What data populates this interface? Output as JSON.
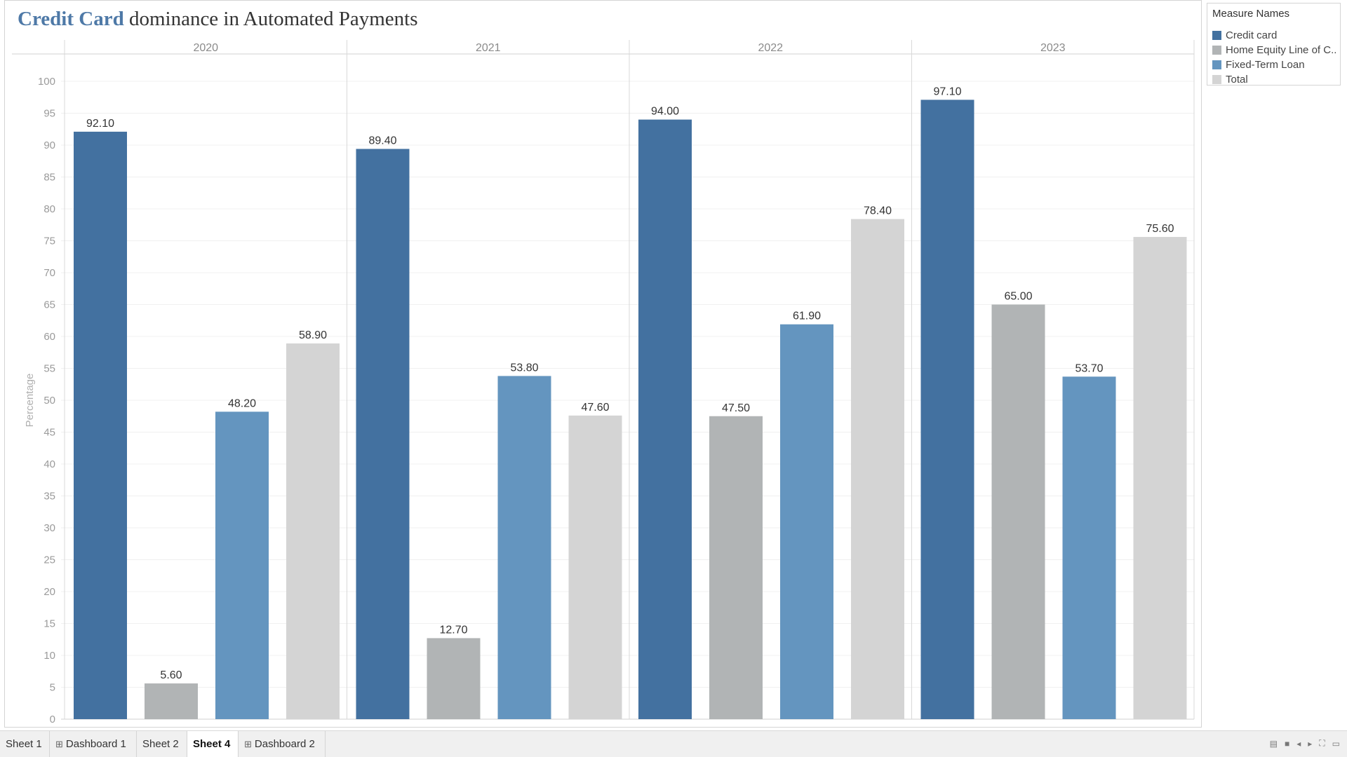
{
  "title": {
    "highlight": "Credit Card",
    "rest": " dominance in Automated Payments"
  },
  "legend": {
    "title": "Measure Names",
    "items": [
      {
        "label": "Credit card",
        "color": "#4371a0"
      },
      {
        "label": "Home Equity Line of C..",
        "color": "#b1b4b5"
      },
      {
        "label": "Fixed-Term Loan",
        "color": "#6495bf"
      },
      {
        "label": "Total",
        "color": "#d4d4d4"
      }
    ]
  },
  "tabs": [
    {
      "label": "Sheet 1",
      "dashboard": false,
      "active": false
    },
    {
      "label": "Dashboard 1",
      "dashboard": true,
      "active": false
    },
    {
      "label": "Sheet 2",
      "dashboard": false,
      "active": false
    },
    {
      "label": "Sheet 4",
      "dashboard": false,
      "active": true
    },
    {
      "label": "Dashboard 2",
      "dashboard": true,
      "active": false
    }
  ],
  "chart_data": {
    "type": "bar",
    "title": "Credit Card dominance in Automated Payments",
    "ylabel": "Percentage",
    "ylim": [
      0,
      100
    ],
    "yticks": [
      0,
      5,
      10,
      15,
      20,
      25,
      30,
      35,
      40,
      45,
      50,
      55,
      60,
      65,
      70,
      75,
      80,
      85,
      90,
      95,
      100
    ],
    "grid": true,
    "legend_position": "right",
    "categories": [
      "2020",
      "2021",
      "2022",
      "2023"
    ],
    "series": [
      {
        "name": "Credit card",
        "color": "#4371a0",
        "values": [
          92.1,
          89.4,
          94.0,
          97.1
        ],
        "labels": [
          "92.10",
          "89.40",
          "94.00",
          "97.10"
        ]
      },
      {
        "name": "Home Equity Line of C..",
        "color": "#b1b4b5",
        "values": [
          5.6,
          12.7,
          47.5,
          65.0
        ],
        "labels": [
          "5.60",
          "12.70",
          "47.50",
          "65.00"
        ]
      },
      {
        "name": "Fixed-Term Loan",
        "color": "#6495bf",
        "values": [
          48.2,
          53.8,
          61.9,
          53.7
        ],
        "labels": [
          "48.20",
          "53.80",
          "61.90",
          "53.70"
        ]
      },
      {
        "name": "Total",
        "color": "#d4d4d4",
        "values": [
          58.9,
          47.6,
          78.4,
          75.6
        ],
        "labels": [
          "58.90",
          "47.60",
          "78.40",
          "75.60"
        ]
      }
    ]
  }
}
